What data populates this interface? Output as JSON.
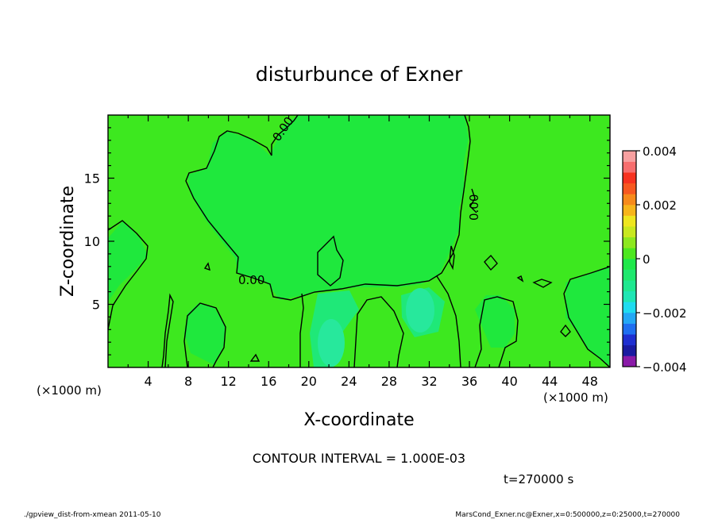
{
  "chart_data": {
    "type": "contour",
    "title": "disturbunce of Exner",
    "xlabel": "X-coordinate",
    "ylabel": "Z-coordinate",
    "x_unit_left": "(×1000 m)",
    "x_unit_right": "(×1000 m)",
    "xlim": [
      0,
      50
    ],
    "ylim": [
      0,
      20
    ],
    "x_ticks": [
      "4",
      "8",
      "12",
      "16",
      "20",
      "24",
      "28",
      "32",
      "36",
      "40",
      "44",
      "48"
    ],
    "y_ticks": [
      "5",
      "10",
      "15"
    ],
    "contour_labels": [
      "0.00",
      "0.00",
      "0.00"
    ],
    "colorbar": {
      "min": -0.004,
      "max": 0.004,
      "tick_labels": [
        "0.004",
        "0.002",
        "0",
        "−0.002",
        "−0.004"
      ],
      "colors": [
        "#8a1aa8",
        "#1a1aa0",
        "#1f2fd0",
        "#1f6ff0",
        "#23a8f5",
        "#1fdcf0",
        "#1fe6b4",
        "#1fe890",
        "#1fe86e",
        "#1fe84a",
        "#4de81f",
        "#8de81f",
        "#c8e81f",
        "#eee61f",
        "#f7b51a",
        "#f78a1a",
        "#f7581f",
        "#f7321f",
        "#f76e6e",
        "#f7a0a0"
      ]
    },
    "contour_interval_text": "CONTOUR INTERVAL = 1.000E-03",
    "time_text": "t=270000  s"
  },
  "footer": {
    "left": "./gpview_dist-from-xmean  2011-05-10",
    "right": "MarsCond_Exner.nc@Exner,x=0:500000,z=0:25000,t=270000"
  },
  "colors": {
    "positive_field": "#3de81f",
    "zero_field": "#1fe83d",
    "negative_field": "#1fe878",
    "negative_core": "#27e89c"
  }
}
